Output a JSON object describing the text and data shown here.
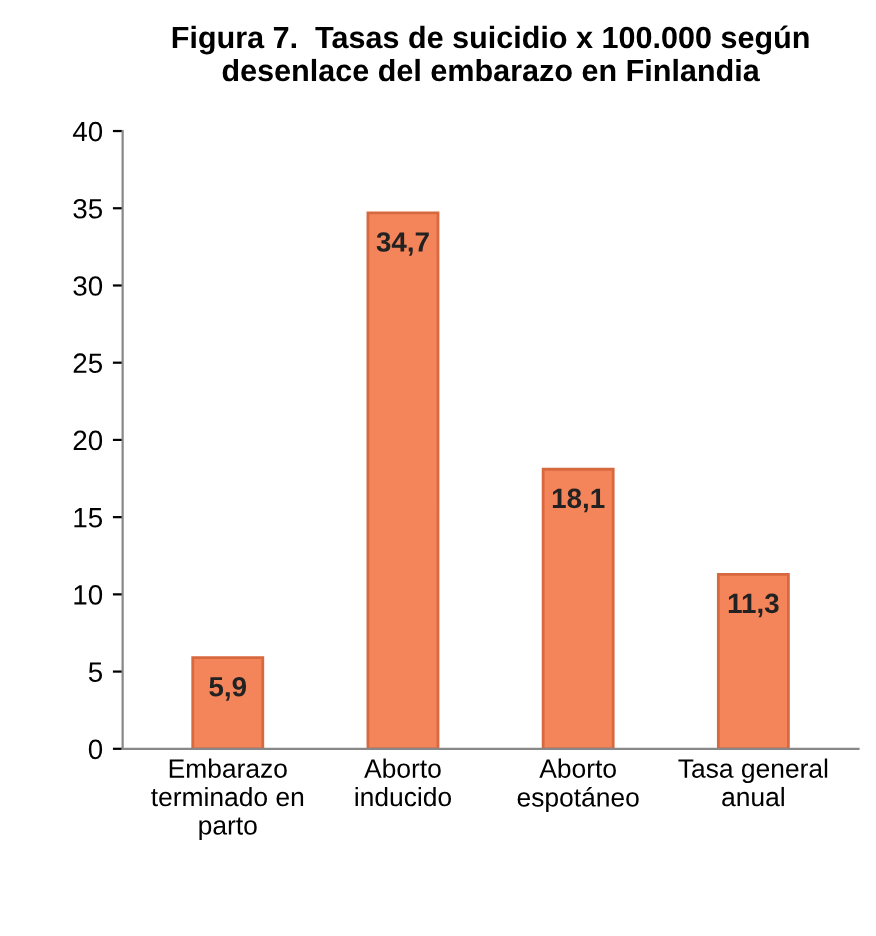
{
  "chart_data": {
    "type": "bar",
    "title": "Figura 7.  Tasas de suicidio x 100.000 según\ndesenlace del embarazo en Finlandia",
    "categories": [
      "Embarazo\nterminado en\nparto",
      "Aborto\ninducido",
      "Aborto\nespotáneo",
      "Tasa general\nanual"
    ],
    "values": [
      5.9,
      34.7,
      18.1,
      11.3
    ],
    "value_labels": [
      "5,9",
      "34,7",
      "18,1",
      "11,3"
    ],
    "color": "#f4845a",
    "ylim": [
      0,
      40
    ],
    "yticks": [
      0,
      5,
      10,
      15,
      20,
      25,
      30,
      35,
      40
    ],
    "grid": false,
    "legend": false
  }
}
